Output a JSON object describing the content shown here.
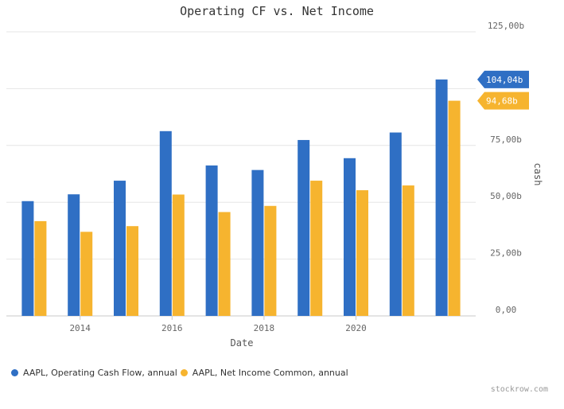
{
  "chart_data": {
    "type": "bar",
    "title": "Operating CF vs. Net Income",
    "xlabel": "Date",
    "ylabel": "cash",
    "ylim": [
      0,
      125
    ],
    "y_tick_labels": [
      "0,00",
      "25,00b",
      "50,00b",
      "75,00b",
      "125,00b"
    ],
    "x_tick_labels": [
      "2014",
      "2016",
      "2018",
      "2020"
    ],
    "grid": true,
    "legend_position": "bottom-left",
    "categories": [
      "2013",
      "2014",
      "2015",
      "2016",
      "2017",
      "2018",
      "2019",
      "2020",
      "2021",
      "2022"
    ],
    "series": [
      {
        "name": "AAPL, Operating Cash Flow, annual",
        "color": "#2f6fc4",
        "values": [
          50.5,
          53.5,
          59.5,
          81.3,
          66.2,
          64.2,
          77.4,
          69.4,
          80.7,
          104.04
        ],
        "last_label": "104,04b"
      },
      {
        "name": "AAPL, Net Income Common, annual",
        "color": "#f6b42f",
        "values": [
          41.7,
          37.0,
          39.5,
          53.4,
          45.7,
          48.4,
          59.5,
          55.3,
          57.4,
          94.68
        ],
        "last_label": "94,68b"
      }
    ]
  },
  "credit": "stockrow.com"
}
